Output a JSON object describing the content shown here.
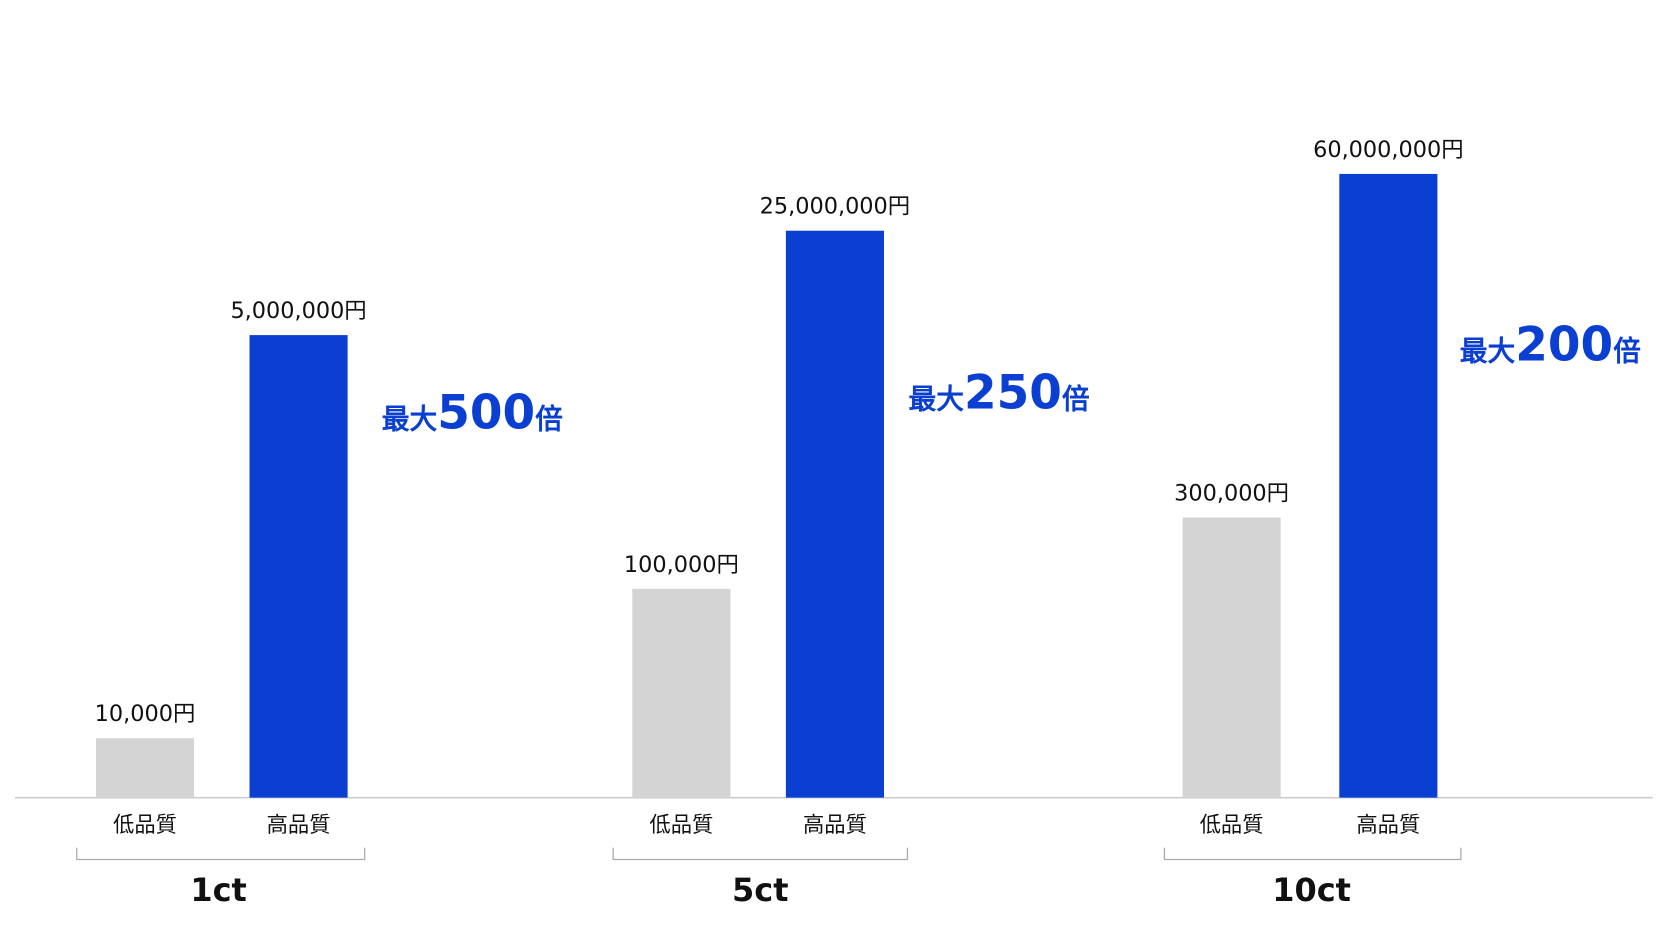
{
  "chart_data": {
    "type": "grouped_bar",
    "groups": [
      "1ct",
      "5ct",
      "10ct"
    ],
    "log_scale": true,
    "ylim": [
      4000,
      100000000
    ],
    "series": [
      {
        "name": "低品質",
        "color": "#d4d4d4",
        "values": [
          10000,
          100000,
          300000
        ],
        "value_labels": [
          "10,000円",
          "100,000円",
          "300,000円"
        ]
      },
      {
        "name": "高品質",
        "color": "#0a3fd1",
        "values": [
          5000000,
          25000000,
          60000000
        ],
        "value_labels": [
          "5,000,000円",
          "25,000,000円",
          "60,000,000円"
        ]
      }
    ],
    "annotations": [
      {
        "prefix": "最大",
        "value": 500,
        "suffix": "倍"
      },
      {
        "prefix": "最大",
        "value": 250,
        "suffix": "倍"
      },
      {
        "prefix": "最大",
        "value": 200,
        "suffix": "倍"
      }
    ],
    "annotation_color": "#0a3fd1"
  }
}
